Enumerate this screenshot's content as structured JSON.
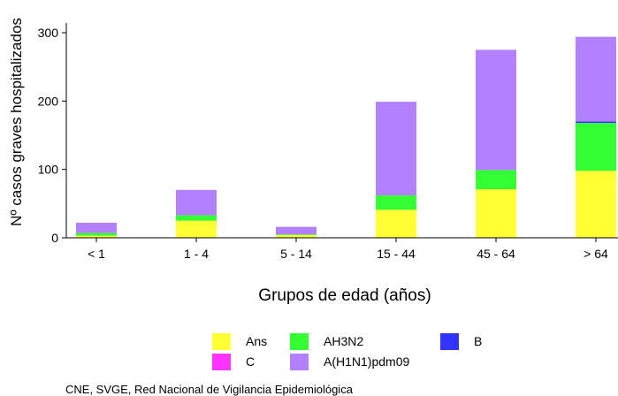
{
  "chart_data": {
    "type": "bar",
    "stacked": true,
    "title": "",
    "xlabel": "Grupos de edad (años)",
    "ylabel": "Nº casos graves hospitalizados",
    "ylim": [
      0,
      300
    ],
    "yticks": [
      0,
      100,
      200,
      300
    ],
    "grid": false,
    "legend_position": "bottom",
    "categories": [
      "< 1",
      "1 - 4",
      "5 - 14",
      "15 - 44",
      "45 - 64",
      "> 64"
    ],
    "series": [
      {
        "name": "Ans",
        "color": "#ffff33",
        "values": [
          3,
          25,
          4,
          41,
          71,
          98
        ]
      },
      {
        "name": "AH3N2",
        "color": "#33ff33",
        "values": [
          4,
          8,
          1,
          21,
          28,
          70
        ]
      },
      {
        "name": "B",
        "color": "#3333ff",
        "values": [
          0,
          0,
          0,
          0,
          0,
          2
        ]
      },
      {
        "name": "C",
        "color": "#ff33ff",
        "values": [
          0,
          0,
          0,
          0,
          0,
          0
        ]
      },
      {
        "name": "A(H1N1)pdm09",
        "color": "#b380ff",
        "values": [
          15,
          37,
          11,
          137,
          176,
          124
        ]
      }
    ]
  },
  "legend": {
    "items": [
      {
        "name": "Ans",
        "color": "#ffff33"
      },
      {
        "name": "AH3N2",
        "color": "#33ff33"
      },
      {
        "name": "B",
        "color": "#3333ff"
      },
      {
        "name": "C",
        "color": "#ff33ff"
      },
      {
        "name": "A(H1N1)pdm09",
        "color": "#b380ff"
      }
    ]
  },
  "source": "CNE, SVGE, Red Nacional de Vigilancia Epidemiológica"
}
